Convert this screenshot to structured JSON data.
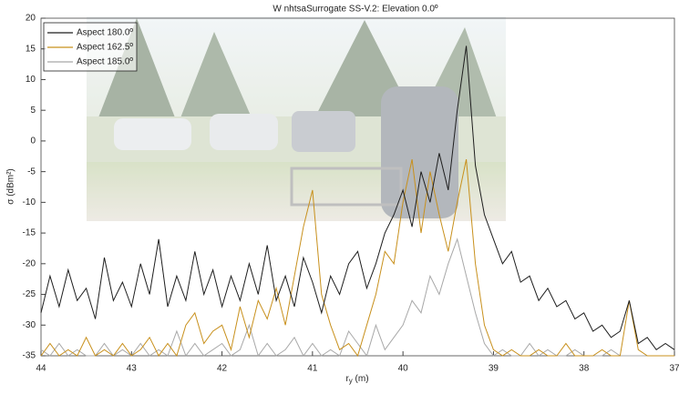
{
  "chart_data": {
    "type": "line",
    "title": "W nhtsaSurrogate SS-V.2:  Elevation 0.0º",
    "xlabel": {
      "main": "r",
      "sub": "y",
      "unit": " (m)"
    },
    "ylabel": "σ (dBm²)",
    "x": [
      44,
      43.9,
      43.8,
      43.7,
      43.6,
      43.5,
      43.4,
      43.3,
      43.2,
      43.1,
      43,
      42.9,
      42.8,
      42.7,
      42.6,
      42.5,
      42.4,
      42.3,
      42.2,
      42.1,
      42,
      41.9,
      41.8,
      41.7,
      41.6,
      41.5,
      41.4,
      41.3,
      41.2,
      41.1,
      41,
      40.9,
      40.8,
      40.7,
      40.6,
      40.5,
      40.4,
      40.3,
      40.2,
      40.1,
      40,
      39.9,
      39.8,
      39.7,
      39.6,
      39.5,
      39.4,
      39.3,
      39.2,
      39.1,
      39,
      38.9,
      38.8,
      38.7,
      38.6,
      38.5,
      38.4,
      38.3,
      38.2,
      38.1,
      38,
      37.9,
      37.8,
      37.7,
      37.6,
      37.5,
      37.4,
      37.3,
      37.2,
      37.1,
      37
    ],
    "series": [
      {
        "name": "Aspect 180.0º",
        "color": "#1e1e1e",
        "values": [
          -28,
          -22,
          -27,
          -21,
          -26,
          -24,
          -29,
          -19,
          -26,
          -23,
          -27,
          -20,
          -25,
          -16,
          -27,
          -22,
          -26,
          -18,
          -25,
          -21,
          -27,
          -22,
          -26,
          -20,
          -25,
          -17,
          -26,
          -22,
          -27,
          -19,
          -23,
          -28,
          -22,
          -25,
          -20,
          -18,
          -24,
          -20,
          -15,
          -12,
          -8,
          -14,
          -5,
          -10,
          -2,
          -8,
          5,
          15.5,
          -4,
          -12,
          -16,
          -20,
          -18,
          -23,
          -22,
          -26,
          -24,
          -27,
          -26,
          -29,
          -28,
          -31,
          -30,
          -32,
          -31,
          -26,
          -33,
          -32,
          -34,
          -33,
          -34
        ]
      },
      {
        "name": "Aspect 162.5º",
        "color": "#c8901c",
        "values": [
          -35,
          -33,
          -35,
          -34,
          -35,
          -32,
          -35,
          -34,
          -35,
          -33,
          -35,
          -34,
          -32,
          -35,
          -33,
          -35,
          -30,
          -28,
          -33,
          -31,
          -30,
          -34,
          -27,
          -32,
          -26,
          -29,
          -24,
          -30,
          -22,
          -14,
          -8,
          -25,
          -30,
          -34,
          -33,
          -35,
          -30,
          -25,
          -18,
          -20,
          -10,
          -3,
          -15,
          -5,
          -12,
          -18,
          -10,
          -3,
          -20,
          -30,
          -34,
          -35,
          -34,
          -35,
          -35,
          -34,
          -35,
          -35,
          -33,
          -35,
          -35,
          -35,
          -34,
          -35,
          -35,
          -26,
          -34,
          -35,
          -35,
          -35,
          -35
        ]
      },
      {
        "name": "Aspect 185.0º",
        "color": "#a8a8a8",
        "values": [
          -34,
          -35,
          -33,
          -35,
          -34,
          -35,
          -35,
          -33,
          -35,
          -34,
          -35,
          -33,
          -35,
          -34,
          -35,
          -31,
          -35,
          -33,
          -35,
          -34,
          -33,
          -35,
          -34,
          -30,
          -35,
          -33,
          -35,
          -34,
          -32,
          -35,
          -33,
          -35,
          -34,
          -35,
          -31,
          -33,
          -35,
          -30,
          -34,
          -32,
          -30,
          -26,
          -28,
          -22,
          -25,
          -20,
          -16,
          -22,
          -28,
          -33,
          -35,
          -34,
          -35,
          -35,
          -33,
          -35,
          -34,
          -35,
          -35,
          -34,
          -35,
          -35,
          -35,
          -34,
          -35,
          -35,
          -35,
          -35,
          -35,
          -35,
          -35
        ]
      }
    ],
    "xlim": [
      44,
      37
    ],
    "xticks": [
      44,
      43,
      42,
      41,
      40,
      39,
      38,
      37
    ],
    "ylim": [
      -35,
      20
    ],
    "yticks": [
      20,
      15,
      10,
      5,
      0,
      -5,
      -10,
      -15,
      -20,
      -25,
      -30,
      -35
    ],
    "legend": "upper left"
  }
}
